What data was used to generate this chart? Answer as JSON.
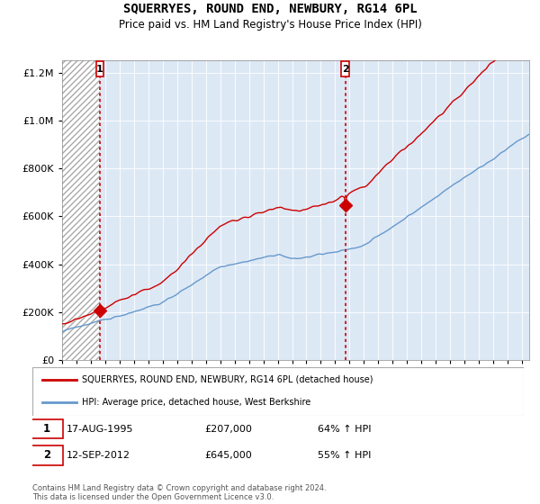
{
  "title": "SQUERRYES, ROUND END, NEWBURY, RG14 6PL",
  "subtitle": "Price paid vs. HM Land Registry's House Price Index (HPI)",
  "legend_line1": "SQUERRYES, ROUND END, NEWBURY, RG14 6PL (detached house)",
  "legend_line2": "HPI: Average price, detached house, West Berkshire",
  "sale1_date": "17-AUG-1995",
  "sale1_price": "£207,000",
  "sale1_hpi": "64% ↑ HPI",
  "sale1_year": 1995.625,
  "sale1_value": 207000,
  "sale2_date": "12-SEP-2012",
  "sale2_price": "£645,000",
  "sale2_hpi": "55% ↑ HPI",
  "sale2_year": 2012.708,
  "sale2_value": 645000,
  "copyright": "Contains HM Land Registry data © Crown copyright and database right 2024.\nThis data is licensed under the Open Government Licence v3.0.",
  "ylim": [
    0,
    1250000
  ],
  "xlim_start": 1993,
  "xlim_end": 2025.5,
  "red_color": "#cc0000",
  "blue_color": "#6699cc",
  "plot_bg_color": "#dde8f5",
  "hatch_color": "#bbbbbb",
  "grid_color": "#ffffff",
  "background_color": "#ffffff"
}
